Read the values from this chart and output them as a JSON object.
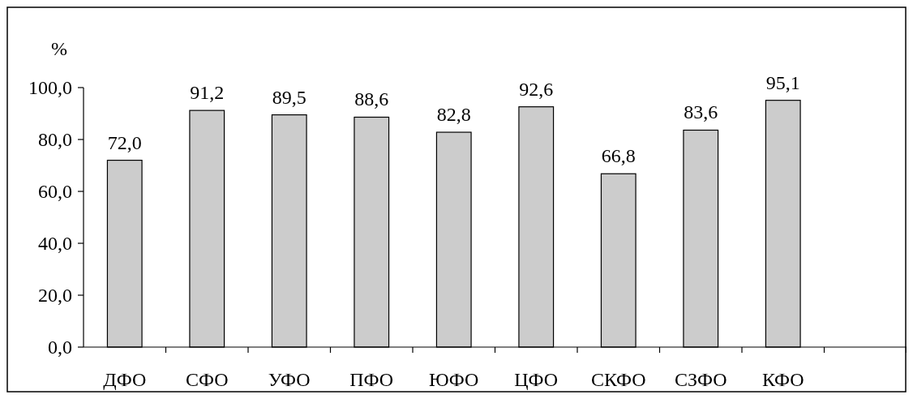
{
  "chart_data": {
    "type": "bar",
    "ylabel": "%",
    "categories": [
      "ДФО",
      "СФО",
      "УФО",
      "ПФО",
      "ЮФО",
      "ЦФО",
      "СКФО",
      "СЗФО",
      "КФО",
      null
    ],
    "values": [
      72.0,
      91.2,
      89.5,
      88.6,
      82.8,
      92.6,
      66.8,
      83.6,
      95.1,
      null
    ],
    "value_labels": [
      "72,0",
      "91,2",
      "89,5",
      "88,6",
      "82,8",
      "92,6",
      "66,8",
      "83,6",
      "95,1",
      null
    ],
    "color": "#cccccc",
    "ylim": [
      0,
      100
    ],
    "yticks": [
      {
        "value": 0,
        "label": "0,0"
      },
      {
        "value": 20,
        "label": "20,0"
      },
      {
        "value": 40,
        "label": "40,0"
      },
      {
        "value": 60,
        "label": "60,0"
      },
      {
        "value": 80,
        "label": "80,0"
      },
      {
        "value": 100,
        "label": "100,0"
      }
    ],
    "grid": false
  }
}
